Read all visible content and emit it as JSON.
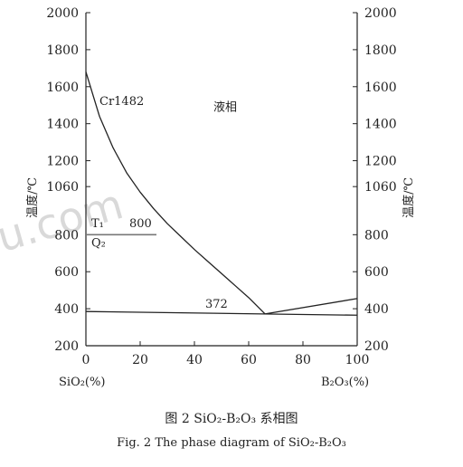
{
  "chart_data": {
    "type": "line",
    "xlim": [
      0,
      100
    ],
    "ylim": [
      200,
      2000
    ],
    "x_ticks": [
      "0",
      "20",
      "40",
      "60",
      "80",
      "100"
    ],
    "y_ticks_left": [
      "200",
      "400",
      "600",
      "800",
      "1060",
      "1200",
      "1400",
      "1600",
      "1800",
      "2000"
    ],
    "y_ticks_right": [
      "200",
      "400",
      "600",
      "800",
      "1060",
      "1200",
      "1400",
      "1600",
      "1800",
      "2000"
    ],
    "ylabel_left": "温度/℃",
    "ylabel_right": "温度/℃",
    "xlabel_left": "SiO₂(%)",
    "xlabel_right": "B₂O₃(%)",
    "series": [
      {
        "x": [
          0,
          5,
          10,
          15,
          20,
          25,
          30,
          35,
          40,
          45,
          50,
          55,
          60,
          66
        ],
        "y": [
          1680,
          1440,
          1270,
          1135,
          1030,
          940,
          860,
          790,
          720,
          655,
          590,
          525,
          460,
          372
        ]
      },
      {
        "x": [
          66,
          100
        ],
        "y": [
          372,
          455
        ]
      },
      {
        "x": [
          0,
          100
        ],
        "y": [
          385,
          365
        ]
      },
      {
        "x": [
          0,
          26
        ],
        "y": [
          800,
          800
        ]
      }
    ],
    "annotations": [
      {
        "text": "Cr1482",
        "x": 5,
        "y": 1500
      },
      {
        "text": "液相",
        "x": 47,
        "y": 1470
      },
      {
        "text": "800",
        "x": 16,
        "y": 840
      },
      {
        "text": "T₁",
        "x": 2,
        "y": 840
      },
      {
        "text": "Q₂",
        "x": 2,
        "y": 735
      },
      {
        "text": "372",
        "x": 44,
        "y": 405
      }
    ]
  },
  "caption": {
    "cn": "图 2 SiO₂-B₂O₃ 系相图",
    "en": "Fig. 2 The phase diagram of SiO₂-B₂O₃"
  },
  "watermark": "u.com",
  "colors": {
    "curve": "#222222",
    "axis": "#222222",
    "gray_line": "#777777",
    "watermark": "#d9d9d9"
  }
}
